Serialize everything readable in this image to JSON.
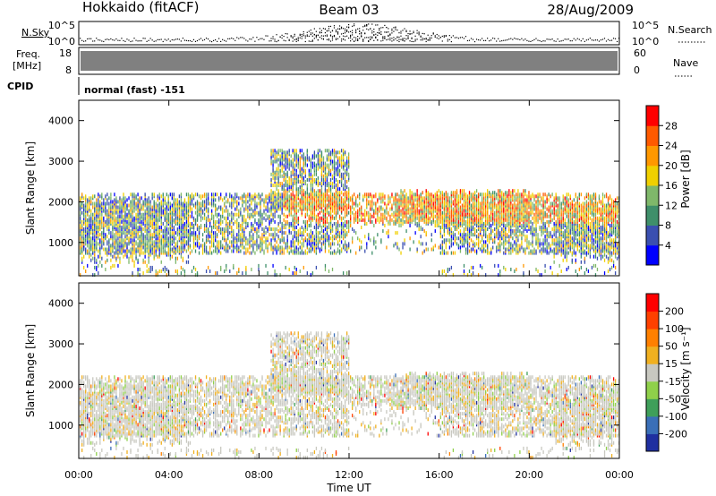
{
  "header": {
    "station": "Hokkaido (fitACF)",
    "beam": "Beam 03",
    "date": "28/Aug/2009"
  },
  "status_panels": {
    "nsky_label": "N.Sky",
    "nsky_ticks": [
      "10^5",
      "10^0"
    ],
    "nsearch_label": "N.Search",
    "nsearch_ticks": [
      "10^5",
      "10^0"
    ],
    "freq_label_1": "Freq.",
    "freq_label_2": "[MHz]",
    "freq_ticks": [
      "18",
      "8"
    ],
    "nave_label": "Nave",
    "nave_ticks": [
      "60",
      "0"
    ],
    "cpid_label": "CPID",
    "cpid_value": "normal (fast) -151"
  },
  "chart_data": [
    {
      "type": "heatmap",
      "name": "power",
      "ylabel": "Slant Range [km]",
      "ylim": [
        180,
        4500
      ],
      "y_ticks": [
        "1000",
        "2000",
        "3000",
        "4000"
      ],
      "y_tick_values": [
        1000,
        2000,
        3000,
        4000
      ],
      "xlim": [
        0,
        24
      ],
      "colorbar_label": "Power [dB]",
      "colorbar_ticks": [
        "4",
        "8",
        "12",
        "16",
        "20",
        "24",
        "28"
      ],
      "colorbar_colors": [
        "#0000ff",
        "#3a4fb0",
        "#3f8f6a",
        "#7fb86a",
        "#f0d000",
        "#ff9800",
        "#ff5a00",
        "#ff0000"
      ]
    },
    {
      "type": "heatmap",
      "name": "velocity",
      "ylabel": "Slant Range [km]",
      "ylim": [
        180,
        4500
      ],
      "y_ticks": [
        "1000",
        "2000",
        "3000",
        "4000"
      ],
      "y_tick_values": [
        1000,
        2000,
        3000,
        4000
      ],
      "xlim": [
        0,
        24
      ],
      "xlabel": "Time UT",
      "x_ticks": [
        "00:00",
        "04:00",
        "08:00",
        "12:00",
        "16:00",
        "20:00",
        "00:00"
      ],
      "x_tick_values": [
        0,
        4,
        8,
        12,
        16,
        20,
        24
      ],
      "colorbar_label": "Velocity [m s⁻¹]",
      "colorbar_ticks": [
        "200",
        "100",
        "50",
        "15",
        "-15",
        "-50",
        "-100",
        "-200"
      ],
      "colorbar_colors": [
        "#1f2fa0",
        "#3a6fb8",
        "#3f9f5a",
        "#8fd04a",
        "#c8c8c0",
        "#f0b020",
        "#ff8000",
        "#ff4000",
        "#ff0000"
      ]
    }
  ]
}
